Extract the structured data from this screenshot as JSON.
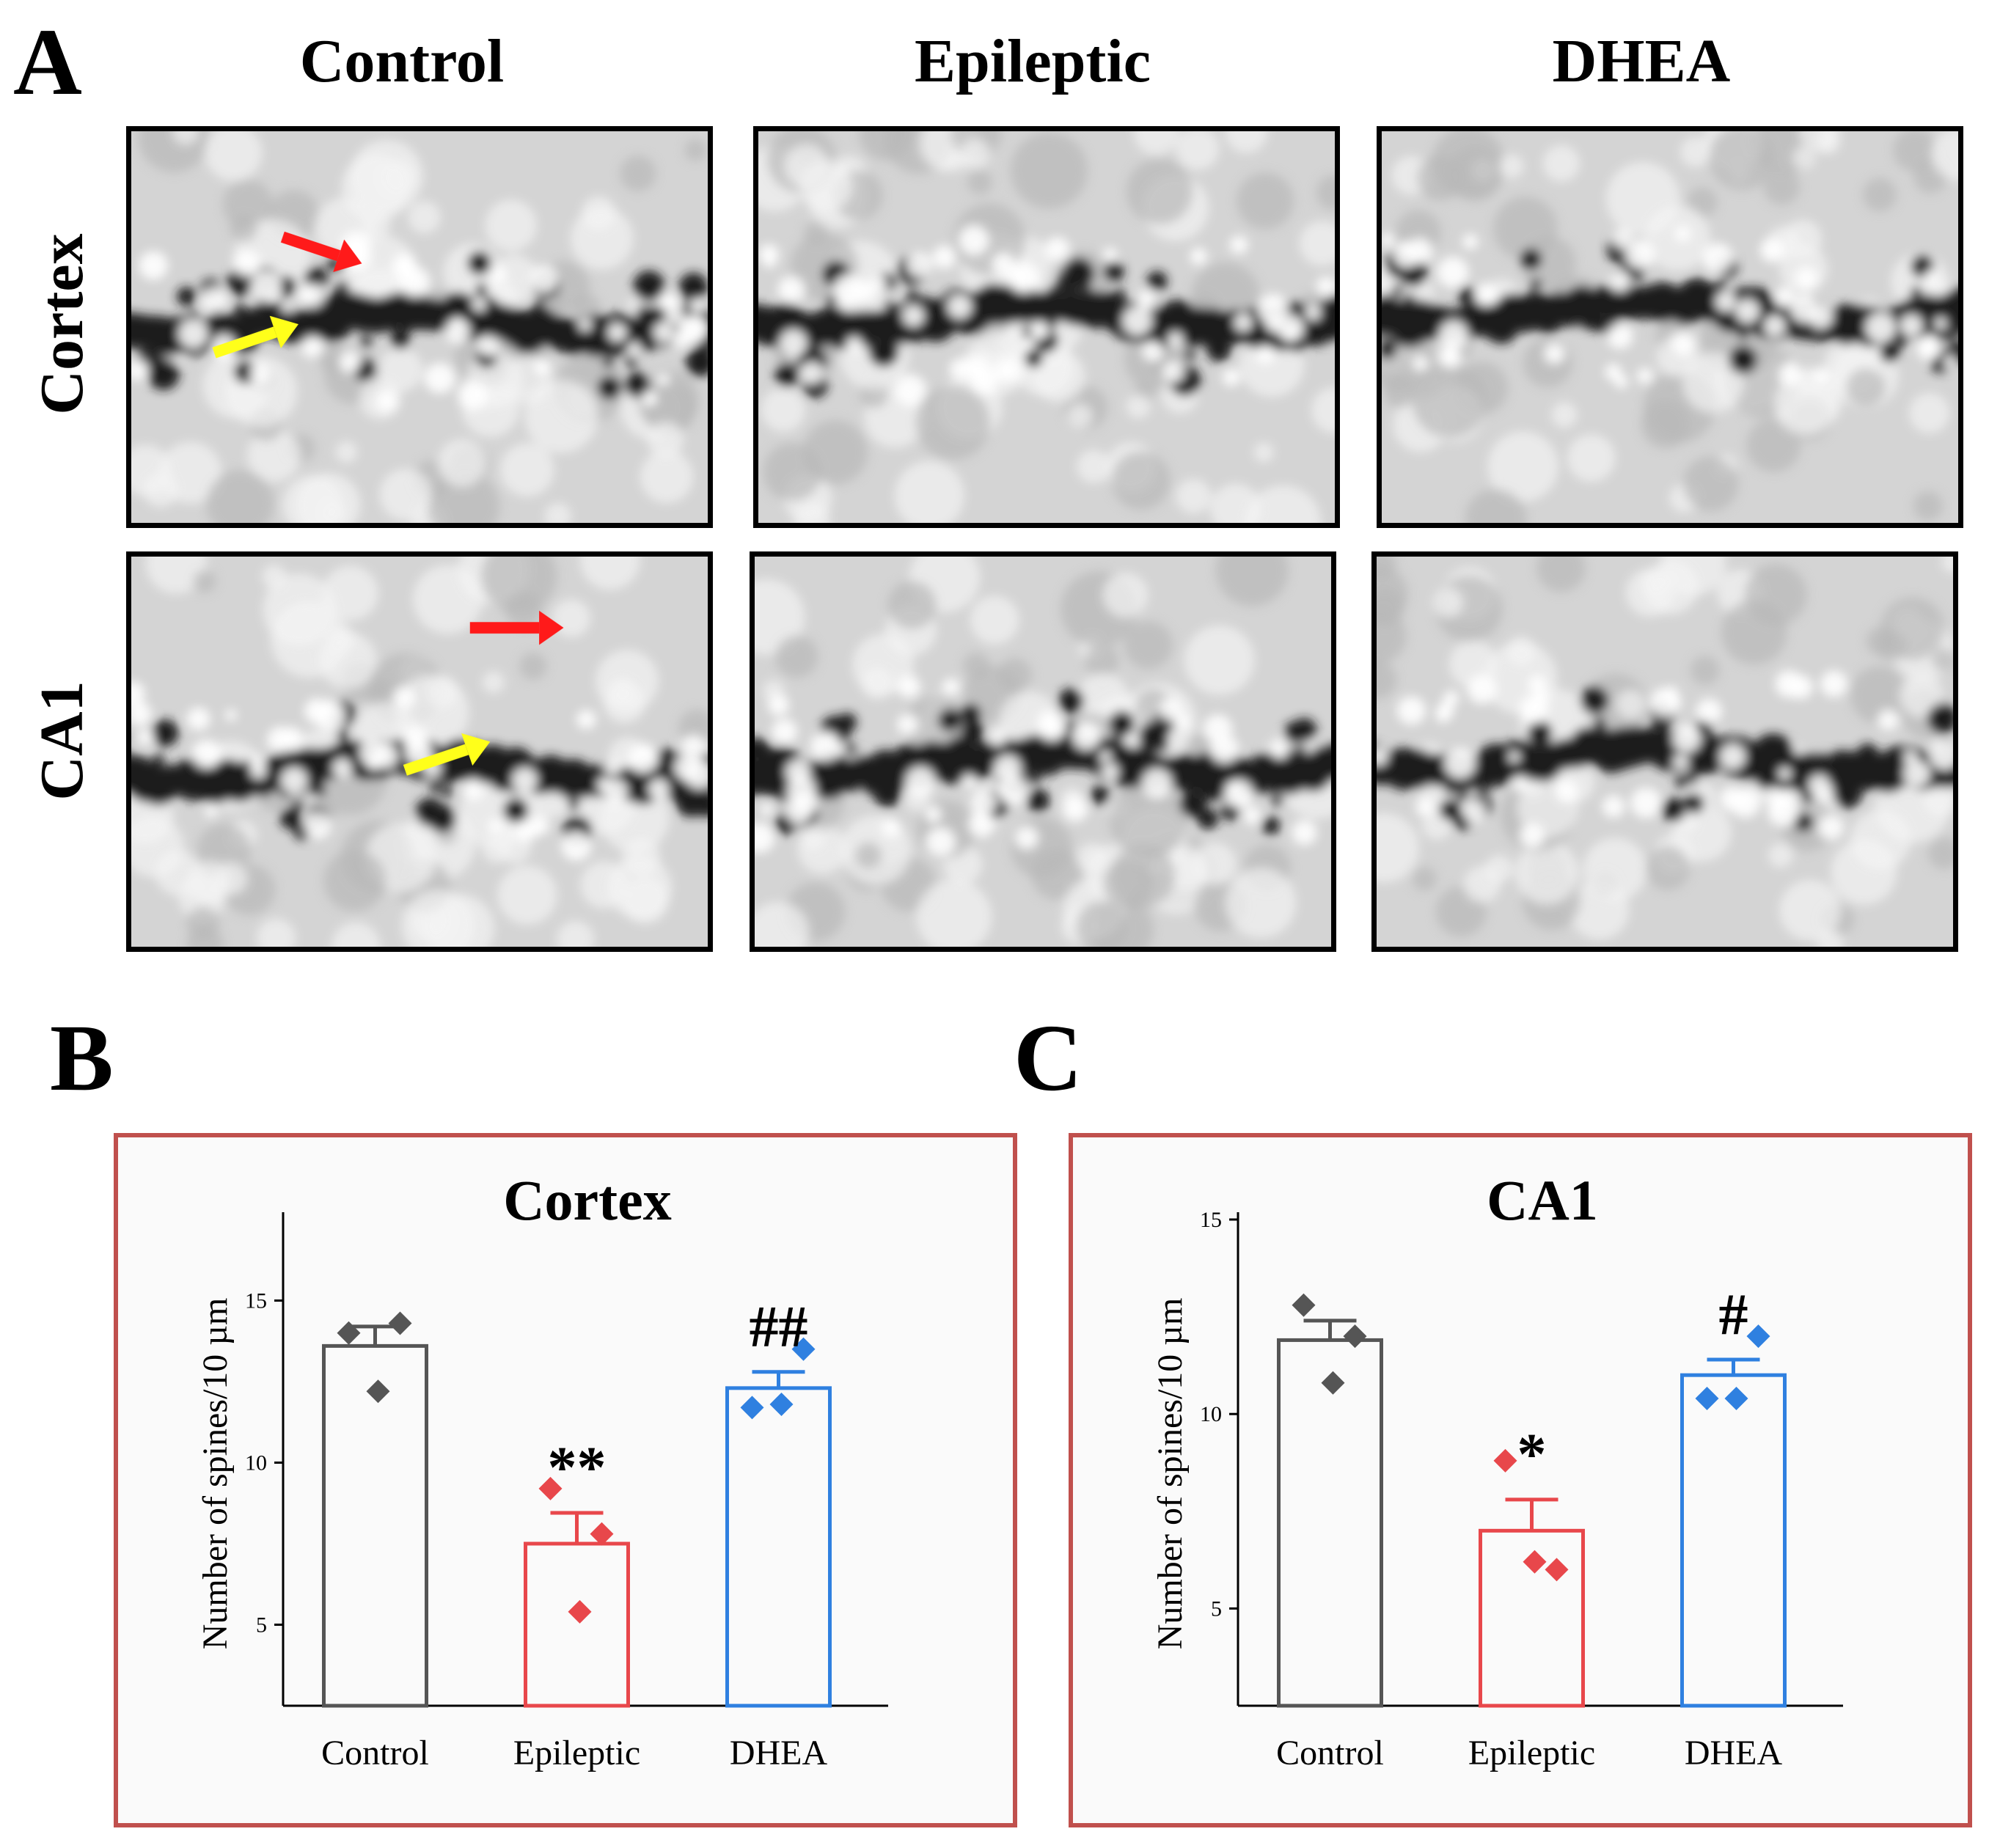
{
  "figure": {
    "panel_a_letter": "A",
    "panel_b_letter": "B",
    "panel_c_letter": "C",
    "columns": [
      "Control",
      "Epileptic",
      "DHEA"
    ],
    "rows": [
      "Cortex",
      "CA1"
    ],
    "arrow_colors": {
      "spine_arrow": "#ff1a1a",
      "dendrite_arrow": "#ffff1a"
    },
    "group_colors": {
      "Control": "#555555",
      "Epileptic": "#e8474b",
      "DHEA": "#2f80e0"
    },
    "frame_color": "#c0504d"
  },
  "chart_data": [
    {
      "type": "bar",
      "title": "Cortex",
      "xlabel": "",
      "ylabel": "Number of spines/10 µm",
      "categories": [
        "Control",
        "Epileptic",
        "DHEA"
      ],
      "values": [
        13.6,
        7.5,
        12.3
      ],
      "errors": [
        0.6,
        0.95,
        0.5
      ],
      "points": [
        [
          14.0,
          14.3,
          12.2
        ],
        [
          9.2,
          7.8,
          5.4
        ],
        [
          11.7,
          13.5,
          11.8
        ]
      ],
      "significance": [
        "",
        "**",
        "##"
      ],
      "ylim": [
        2.5,
        17.5
      ],
      "yticks": [
        5,
        10,
        15
      ],
      "ytick_labels": [
        "5",
        "10",
        "15"
      ]
    },
    {
      "type": "bar",
      "title": "CA1",
      "xlabel": "",
      "ylabel": "Number of spines/10 µm",
      "categories": [
        "Control",
        "Epileptic",
        "DHEA"
      ],
      "values": [
        11.9,
        7.0,
        11.0
      ],
      "errors": [
        0.5,
        0.8,
        0.4
      ],
      "points": [
        [
          12.8,
          12.0,
          10.8
        ],
        [
          8.8,
          6.0,
          6.2
        ],
        [
          10.4,
          12.0,
          10.4
        ]
      ],
      "significance": [
        "",
        "*",
        "#"
      ],
      "ylim": [
        2.5,
        15
      ],
      "yticks": [
        5,
        10,
        15
      ],
      "ytick_labels": [
        "5",
        "10",
        "15"
      ]
    }
  ]
}
